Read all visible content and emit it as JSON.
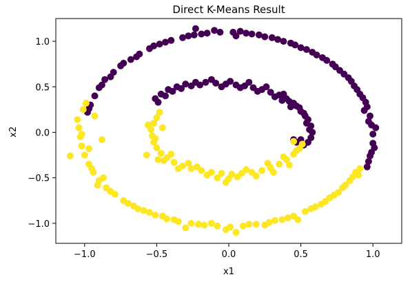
{
  "chart_data": {
    "type": "scatter",
    "title": "Direct K-Means Result",
    "xlabel": "x1",
    "ylabel": "x2",
    "xlim": [
      -1.2,
      1.2
    ],
    "ylim": [
      -1.22,
      1.25
    ],
    "xticks": [
      -1.0,
      -0.5,
      0.0,
      0.5,
      1.0
    ],
    "xtick_labels": [
      "−1.0",
      "−0.5",
      "0.0",
      "0.5",
      "1.0"
    ],
    "yticks": [
      -1.0,
      -0.5,
      0.0,
      0.5,
      1.0
    ],
    "ytick_labels": [
      "−1.0",
      "−0.5",
      "0.0",
      "0.5",
      "1.0"
    ],
    "grid": false,
    "colors": {
      "cluster_0": "#440154",
      "cluster_1": "#fde725"
    },
    "series": [
      {
        "points": [
          [
            -0.98,
            0.22
          ],
          [
            -0.96,
            0.3
          ],
          [
            -0.93,
            0.4
          ],
          [
            -0.9,
            0.49
          ],
          [
            -0.86,
            0.58
          ],
          [
            -0.8,
            0.66
          ],
          [
            -0.75,
            0.73
          ],
          [
            -0.68,
            0.8
          ],
          [
            -0.62,
            0.86
          ],
          [
            -0.55,
            0.92
          ],
          [
            -0.48,
            0.97
          ],
          [
            -0.4,
            1.01
          ],
          [
            -0.32,
            1.04
          ],
          [
            -0.24,
            1.07
          ],
          [
            -0.15,
            1.09
          ],
          [
            -0.06,
            1.1
          ],
          [
            0.03,
            1.1
          ],
          [
            0.12,
            1.09
          ],
          [
            0.21,
            1.07
          ],
          [
            0.3,
            1.04
          ],
          [
            0.38,
            1.0
          ],
          [
            0.46,
            0.96
          ],
          [
            0.54,
            0.91
          ],
          [
            0.61,
            0.85
          ],
          [
            0.68,
            0.79
          ],
          [
            0.74,
            0.72
          ],
          [
            0.8,
            0.64
          ],
          [
            0.85,
            0.56
          ],
          [
            0.89,
            0.47
          ],
          [
            0.93,
            0.38
          ],
          [
            0.96,
            0.28
          ],
          [
            0.98,
            0.18
          ],
          [
            0.99,
            0.08
          ],
          [
            1.0,
            -0.02
          ],
          [
            1.0,
            -0.12
          ],
          [
            0.99,
            -0.22
          ],
          [
            0.97,
            -0.32
          ],
          [
            0.96,
            -0.38
          ],
          [
            -0.82,
            0.61
          ],
          [
            -0.73,
            0.76
          ],
          [
            -0.52,
            0.95
          ],
          [
            -0.28,
            1.06
          ],
          [
            -0.1,
            1.12
          ],
          [
            0.08,
            1.11
          ],
          [
            0.25,
            1.05
          ],
          [
            0.43,
            0.98
          ],
          [
            0.58,
            0.88
          ],
          [
            0.72,
            0.75
          ],
          [
            0.83,
            0.6
          ],
          [
            0.91,
            0.42
          ],
          [
            0.95,
            0.33
          ],
          [
            0.97,
            0.12
          ],
          [
            1.02,
            0.05
          ],
          [
            1.01,
            -0.17
          ],
          [
            0.98,
            -0.26
          ],
          [
            -0.88,
            0.52
          ],
          [
            -0.64,
            0.83
          ],
          [
            -0.44,
            0.99
          ],
          [
            -0.19,
            1.08
          ],
          [
            0.16,
            1.08
          ],
          [
            0.34,
            1.02
          ],
          [
            0.5,
            0.93
          ],
          [
            0.65,
            0.82
          ],
          [
            0.77,
            0.68
          ],
          [
            0.87,
            0.51
          ],
          [
            0.94,
            0.24
          ],
          [
            -0.23,
            1.14
          ],
          [
            0.05,
            1.06
          ],
          [
            -0.97,
            0.26
          ],
          [
            -0.51,
            0.37
          ],
          [
            -0.47,
            0.42
          ],
          [
            -0.42,
            0.47
          ],
          [
            -0.36,
            0.5
          ],
          [
            -0.3,
            0.53
          ],
          [
            -0.23,
            0.55
          ],
          [
            -0.16,
            0.55
          ],
          [
            -0.09,
            0.54
          ],
          [
            -0.02,
            0.53
          ],
          [
            0.05,
            0.52
          ],
          [
            0.11,
            0.51
          ],
          [
            0.17,
            0.49
          ],
          [
            0.23,
            0.47
          ],
          [
            0.29,
            0.44
          ],
          [
            0.35,
            0.41
          ],
          [
            0.4,
            0.37
          ],
          [
            0.45,
            0.32
          ],
          [
            0.49,
            0.27
          ],
          [
            0.52,
            0.21
          ],
          [
            0.55,
            0.14
          ],
          [
            0.57,
            0.07
          ],
          [
            0.58,
            0.0
          ],
          [
            0.57,
            -0.06
          ],
          [
            0.55,
            -0.11
          ],
          [
            0.52,
            -0.14
          ],
          [
            0.47,
            -0.11
          ],
          [
            0.45,
            -0.08
          ],
          [
            -0.49,
            0.33
          ],
          [
            -0.39,
            0.45
          ],
          [
            -0.26,
            0.51
          ],
          [
            -0.12,
            0.58
          ],
          [
            0.01,
            0.56
          ],
          [
            0.14,
            0.55
          ],
          [
            0.26,
            0.5
          ],
          [
            0.38,
            0.42
          ],
          [
            0.47,
            0.29
          ],
          [
            0.53,
            0.18
          ],
          [
            0.56,
            0.03
          ],
          [
            0.5,
            -0.08
          ],
          [
            -0.44,
            0.4
          ],
          [
            -0.33,
            0.48
          ],
          [
            -0.2,
            0.52
          ],
          [
            -0.05,
            0.5
          ],
          [
            0.08,
            0.49
          ],
          [
            0.2,
            0.45
          ],
          [
            0.32,
            0.39
          ],
          [
            0.42,
            0.34
          ],
          [
            0.5,
            0.23
          ],
          [
            0.54,
            0.1
          ],
          [
            0.43,
            0.28
          ],
          [
            0.37,
            0.35
          ]
        ]
      },
      {
        "points": [
          [
            -1.05,
            0.14
          ],
          [
            -1.04,
            0.05
          ],
          [
            -1.03,
            -0.05
          ],
          [
            -1.02,
            -0.15
          ],
          [
            -1.0,
            -0.25
          ],
          [
            -0.97,
            -0.35
          ],
          [
            -0.94,
            -0.44
          ],
          [
            -0.9,
            -0.53
          ],
          [
            -0.85,
            -0.61
          ],
          [
            -0.79,
            -0.68
          ],
          [
            -0.73,
            -0.75
          ],
          [
            -0.66,
            -0.81
          ],
          [
            -0.59,
            -0.86
          ],
          [
            -0.51,
            -0.91
          ],
          [
            -0.43,
            -0.95
          ],
          [
            -0.35,
            -0.98
          ],
          [
            -0.26,
            -1.0
          ],
          [
            -0.17,
            -1.02
          ],
          [
            -0.08,
            -1.03
          ],
          [
            0.01,
            -1.04
          ],
          [
            0.1,
            -1.03
          ],
          [
            0.19,
            -1.01
          ],
          [
            0.28,
            -0.99
          ],
          [
            0.37,
            -0.96
          ],
          [
            0.45,
            -0.92
          ],
          [
            0.53,
            -0.87
          ],
          [
            0.6,
            -0.82
          ],
          [
            0.67,
            -0.76
          ],
          [
            0.73,
            -0.69
          ],
          [
            0.79,
            -0.61
          ],
          [
            0.84,
            -0.53
          ],
          [
            0.88,
            -0.44
          ],
          [
            0.91,
            -0.4
          ],
          [
            -1.1,
            -0.26
          ],
          [
            -0.93,
            0.18
          ],
          [
            -1.01,
            0.25
          ],
          [
            -0.99,
            0.32
          ],
          [
            -0.88,
            -0.08
          ],
          [
            -0.82,
            -0.65
          ],
          [
            -0.55,
            -0.88
          ],
          [
            -0.3,
            -1.05
          ],
          [
            -0.02,
            -1.07
          ],
          [
            0.05,
            -1.1
          ],
          [
            0.25,
            -1.02
          ],
          [
            0.48,
            -0.96
          ],
          [
            0.64,
            -0.79
          ],
          [
            0.76,
            -0.66
          ],
          [
            0.86,
            -0.49
          ],
          [
            -0.95,
            -0.4
          ],
          [
            -0.91,
            -0.58
          ],
          [
            -0.63,
            -0.84
          ],
          [
            -0.46,
            -0.92
          ],
          [
            -0.21,
            -1.01
          ],
          [
            0.14,
            -1.01
          ],
          [
            0.41,
            -0.94
          ],
          [
            0.7,
            -0.72
          ],
          [
            -1.02,
            -0.02
          ],
          [
            -0.97,
            -0.18
          ],
          [
            -0.87,
            -0.5
          ],
          [
            -0.7,
            -0.78
          ],
          [
            -0.38,
            -0.96
          ],
          [
            -0.12,
            -1.0
          ],
          [
            0.32,
            -0.97
          ],
          [
            0.57,
            -0.84
          ],
          [
            0.81,
            -0.58
          ],
          [
            0.9,
            -0.47
          ],
          [
            -0.5,
            0.16
          ],
          [
            -0.52,
            0.1
          ],
          [
            -0.54,
            0.03
          ],
          [
            -0.53,
            -0.04
          ],
          [
            -0.52,
            -0.11
          ],
          [
            -0.5,
            -0.17
          ],
          [
            -0.47,
            -0.23
          ],
          [
            -0.43,
            -0.28
          ],
          [
            -0.38,
            -0.33
          ],
          [
            -0.32,
            -0.37
          ],
          [
            -0.26,
            -0.4
          ],
          [
            -0.19,
            -0.42
          ],
          [
            -0.12,
            -0.44
          ],
          [
            -0.05,
            -0.45
          ],
          [
            0.02,
            -0.46
          ],
          [
            0.09,
            -0.45
          ],
          [
            0.16,
            -0.44
          ],
          [
            0.23,
            -0.42
          ],
          [
            0.29,
            -0.39
          ],
          [
            0.35,
            -0.35
          ],
          [
            0.4,
            -0.3
          ],
          [
            0.45,
            -0.24
          ],
          [
            0.49,
            -0.18
          ],
          [
            0.51,
            -0.13
          ],
          [
            -0.57,
            -0.25
          ],
          [
            -0.48,
            0.22
          ],
          [
            -0.51,
            -0.07
          ],
          [
            -0.45,
            -0.31
          ],
          [
            -0.35,
            -0.4
          ],
          [
            -0.22,
            -0.38
          ],
          [
            -0.08,
            -0.5
          ],
          [
            0.06,
            -0.49
          ],
          [
            0.19,
            -0.48
          ],
          [
            0.31,
            -0.44
          ],
          [
            0.42,
            -0.36
          ],
          [
            0.47,
            -0.2
          ],
          [
            -0.4,
            -0.24
          ],
          [
            -0.28,
            -0.34
          ],
          [
            -0.15,
            -0.47
          ],
          [
            0.12,
            -0.41
          ],
          [
            0.27,
            -0.34
          ],
          [
            0.38,
            -0.27
          ],
          [
            -0.56,
            0.08
          ],
          [
            -0.46,
            0.05
          ],
          [
            -0.49,
            -0.3
          ],
          [
            -0.02,
            -0.55
          ],
          [
            0.0,
            -0.51
          ],
          [
            0.45,
            -0.1
          ]
        ]
      }
    ]
  }
}
